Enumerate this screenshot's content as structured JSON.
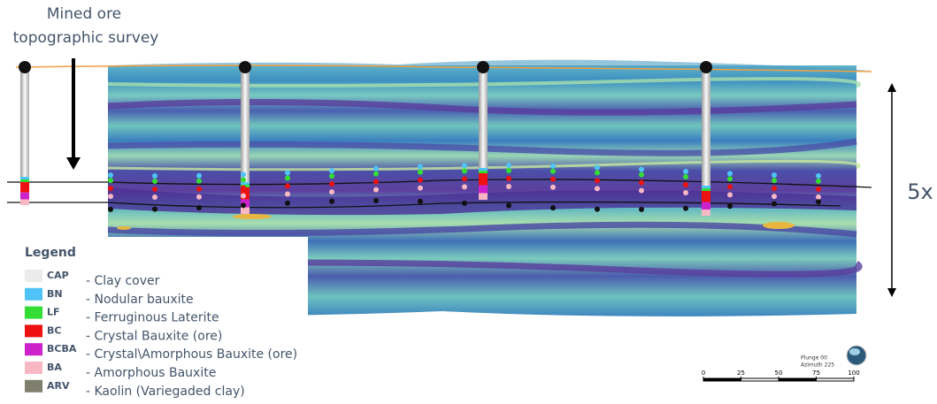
{
  "annotations": {
    "mined_ore": "Mined ore",
    "topographic_survey": "topographic survey",
    "exaggeration": "5x"
  },
  "legend": {
    "title": "Legend",
    "items": [
      {
        "code": "CAP",
        "label": "- Clay cover",
        "color": "#ebebeb"
      },
      {
        "code": "BN",
        "label": "- Nodular bauxite",
        "color": "#4fc3f7"
      },
      {
        "code": "LF",
        "label": "- Ferruginous Laterite",
        "color": "#33dd33"
      },
      {
        "code": "BC",
        "label": "- Crystal Bauxite (ore)",
        "color": "#ee1111"
      },
      {
        "code": "BCBA",
        "label": "- Crystal\\Amorphous Bauxite (ore)",
        "color": "#cc22cc"
      },
      {
        "code": "BA",
        "label": "- Amorphous Bauxite",
        "color": "#f7b8c4"
      },
      {
        "code": "ARV",
        "label": "- Kaolin (Variegaded clay)",
        "color": "#7f7f6e"
      }
    ]
  },
  "orientation": {
    "plunge": "Plunge 00",
    "azimuth": "Azimuth 225"
  },
  "scale_bar": {
    "ticks": [
      0,
      25,
      50,
      75,
      100
    ]
  }
}
